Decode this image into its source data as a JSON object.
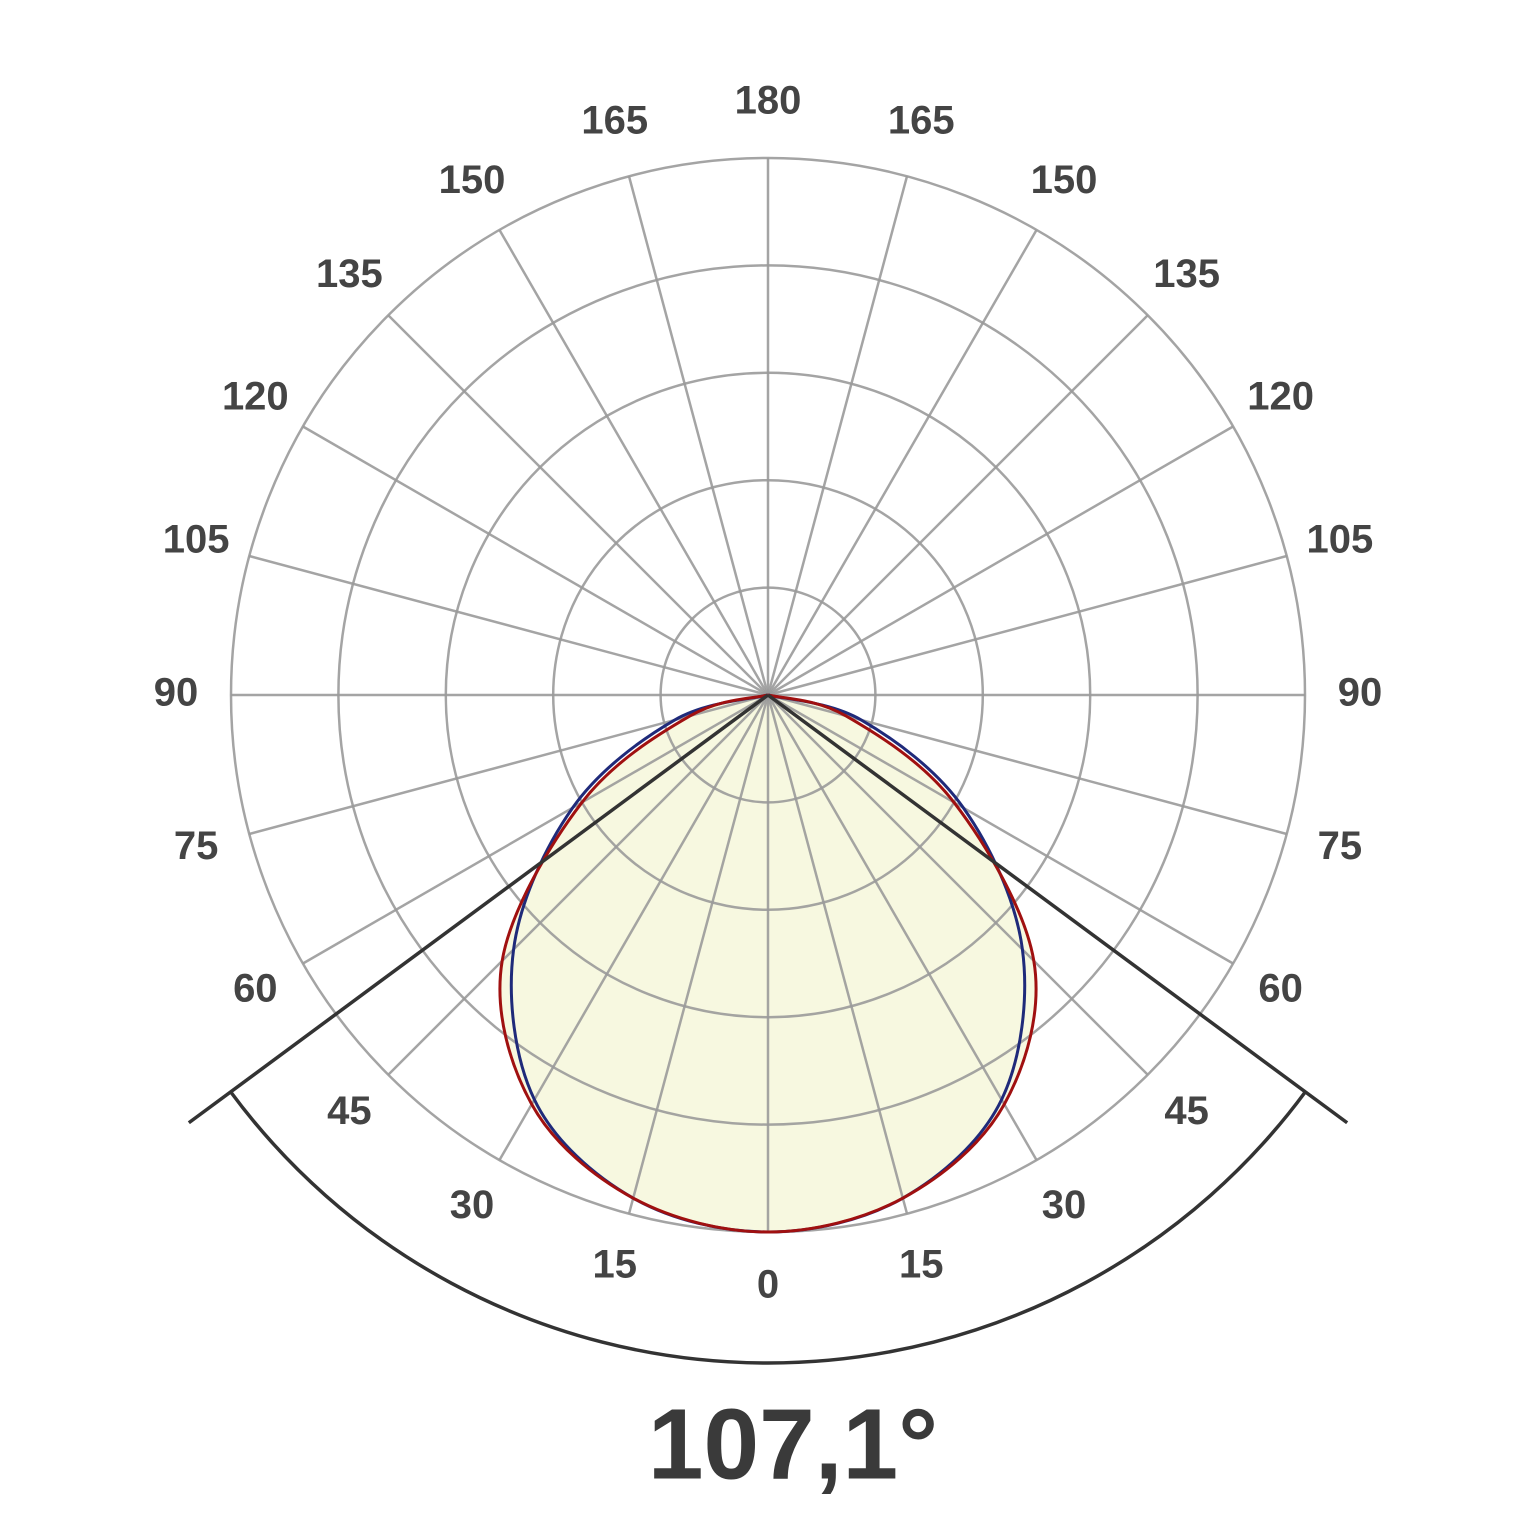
{
  "chart_data": {
    "type": "polar",
    "angles": [
      -90,
      -75,
      -60,
      -45,
      -30,
      -15,
      0,
      15,
      30,
      45,
      60,
      75,
      90
    ],
    "series": [
      {
        "color": "#1f2a7a",
        "values": [
          0,
          18,
          42,
          67,
          87,
          97,
          100,
          97,
          87,
          67,
          42,
          18,
          0
        ]
      },
      {
        "color": "#a01010",
        "values": [
          0,
          15,
          40,
          70,
          88,
          97,
          100,
          97,
          88,
          70,
          40,
          15,
          0
        ]
      }
    ],
    "fill_color": "#f7f8e0",
    "rlim": [
      0,
      100
    ],
    "rticks": [
      20,
      40,
      60,
      80,
      100
    ],
    "angle_ticks": [
      0,
      15,
      30,
      45,
      60,
      75,
      90,
      105,
      120,
      135,
      150,
      165,
      180
    ],
    "beam_angle": 107.1,
    "beam_angle_label": "107,1°"
  }
}
